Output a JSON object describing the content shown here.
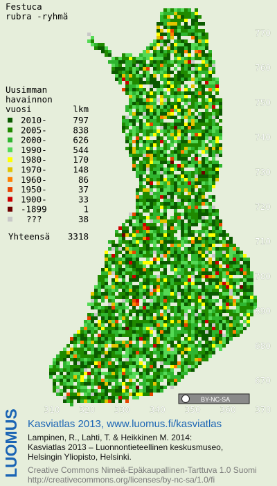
{
  "title": [
    "Festuca",
    "rubra -ryhmä"
  ],
  "legend": {
    "header": [
      "Uusimman",
      "havainnon",
      "vuosi"
    ],
    "count_header": "lkm",
    "rows": [
      {
        "label": "2010-",
        "count": 797,
        "color": "#0b5a00"
      },
      {
        "label": "2005-",
        "count": 838,
        "color": "#1f8a00"
      },
      {
        "label": "2000-",
        "count": 626,
        "color": "#2fb52f"
      },
      {
        "label": "1990-",
        "count": 544,
        "color": "#55d955"
      },
      {
        "label": "1980-",
        "count": 170,
        "color": "#ffff00"
      },
      {
        "label": "1970-",
        "count": 148,
        "color": "#e2c400"
      },
      {
        "label": "1960-",
        "count": 86,
        "color": "#ff8000"
      },
      {
        "label": "1950-",
        "count": 37,
        "color": "#e84400"
      },
      {
        "label": "1900-",
        "count": 33,
        "color": "#cc0000"
      },
      {
        "label": "-1899",
        "count": 1,
        "color": "#6e0000"
      },
      {
        "label": "???",
        "count": 38,
        "color": "#c8c8c8"
      }
    ],
    "total": {
      "label": "Yhteensä",
      "count": 3318
    }
  },
  "grid": {
    "north": [
      770,
      760,
      750,
      740,
      730,
      720,
      710,
      700,
      690,
      680,
      670
    ],
    "east": [
      310,
      320,
      330,
      340,
      350,
      360,
      370
    ]
  },
  "badge": "BY-NC-SA",
  "logo": "LUOMUS",
  "footer": {
    "heading": "Kasviatlas 2013, www.luomus.fi/kasviatlas",
    "citation": [
      "Lampinen, R., Lahti, T. & Heikkinen M. 2014:",
      "Kasviatlas 2013 – Luonnontieteellinen keskusmuseo,",
      "Helsingin Yliopisto, Helsinki."
    ],
    "license": [
      "Creative Commons Nimeä-Epäkaupallinen-Tarttuva 1.0 Suomi",
      "http://creativecommons.org/licenses/by-nc-sa/1.0/fi"
    ]
  }
}
